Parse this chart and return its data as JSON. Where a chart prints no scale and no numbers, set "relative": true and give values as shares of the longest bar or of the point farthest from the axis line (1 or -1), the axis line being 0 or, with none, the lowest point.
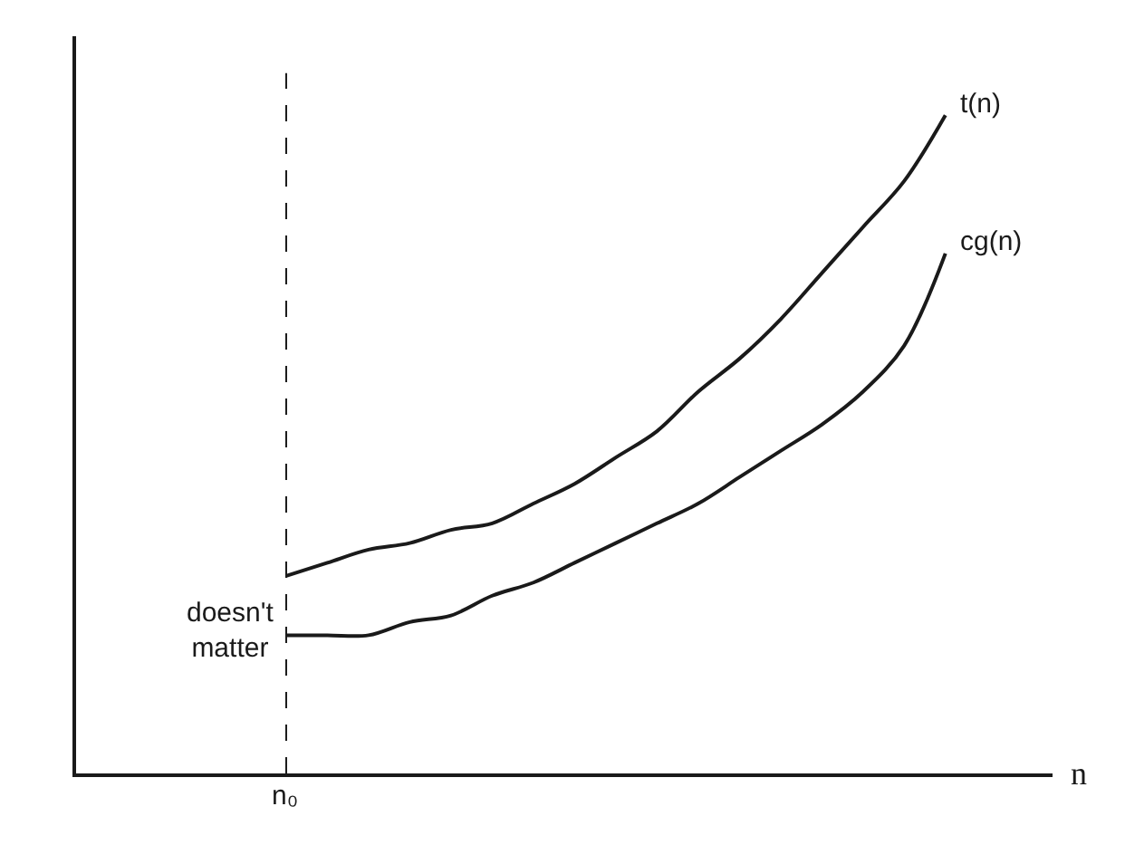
{
  "chart_data": {
    "type": "line",
    "relative": true,
    "xlabel": "n",
    "categories": [
      null,
      null,
      null,
      null,
      null,
      null,
      null,
      null,
      null,
      null,
      null,
      null,
      null,
      null,
      null,
      null,
      null,
      null,
      null,
      null,
      null,
      null,
      null,
      null
    ],
    "series": [
      {
        "name": "t(n)",
        "color": "#1a1a1a",
        "values": [
          null,
          null,
          null,
          null,
          null,
          0.3,
          0.32,
          0.34,
          0.35,
          0.37,
          0.38,
          0.41,
          0.44,
          0.48,
          0.52,
          0.58,
          0.63,
          0.69,
          0.76,
          0.83,
          0.9,
          1.0,
          null,
          null
        ]
      },
      {
        "name": "cg(n)",
        "color": "#1a1a1a",
        "values": [
          null,
          null,
          null,
          null,
          null,
          0.21,
          0.21,
          0.21,
          0.23,
          0.24,
          0.27,
          0.29,
          0.32,
          0.35,
          0.38,
          0.41,
          0.45,
          0.49,
          0.53,
          0.58,
          0.65,
          0.79,
          null,
          null
        ]
      }
    ],
    "annotations": [
      "doesn't matter",
      "n₀"
    ],
    "legend": false,
    "tick_labels": false,
    "marker": "none",
    "line_style": "solid"
  }
}
